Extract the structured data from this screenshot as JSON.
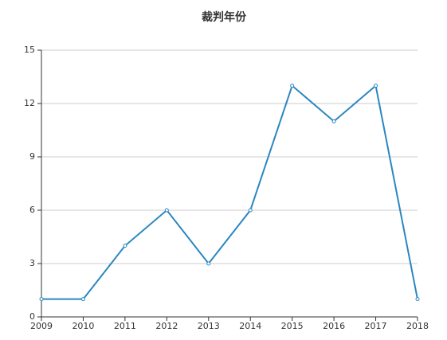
{
  "chart_data": {
    "type": "line",
    "title": "裁判年份",
    "x": [
      2009,
      2010,
      2011,
      2012,
      2013,
      2014,
      2015,
      2016,
      2017,
      2018
    ],
    "xlim": [
      2009,
      2018
    ],
    "xticks": [
      2009,
      2010,
      2011,
      2012,
      2013,
      2014,
      2015,
      2016,
      2017,
      2018
    ],
    "series": [
      {
        "name": "裁判年份",
        "color": "#2b86c1",
        "values": [
          1,
          1,
          4,
          6,
          3,
          6,
          13,
          11,
          13,
          1
        ]
      }
    ],
    "ylim": [
      0,
      15
    ],
    "yticks": [
      0,
      3,
      6,
      9,
      12,
      15
    ],
    "grid": true
  }
}
